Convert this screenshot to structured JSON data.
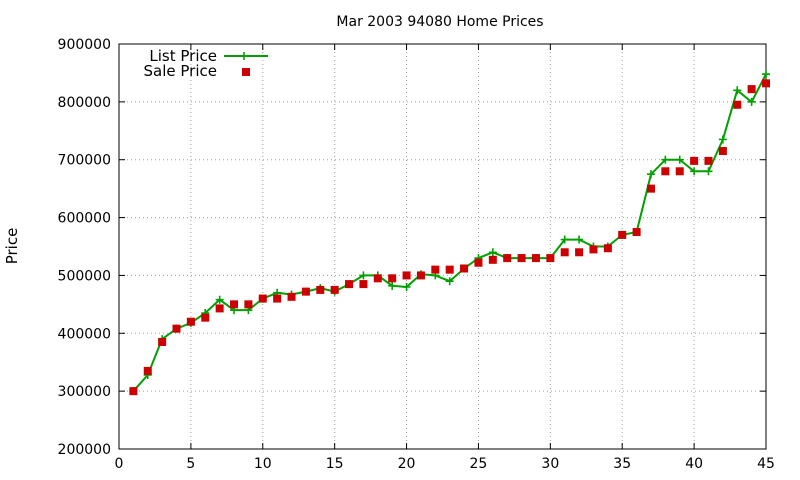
{
  "chart_data": {
    "type": "line",
    "title": "Mar 2003 94080 Home Prices",
    "xlabel": "",
    "ylabel": "Price",
    "xlim": [
      0,
      45
    ],
    "ylim": [
      200000,
      900000
    ],
    "x_ticks": [
      "0",
      "5",
      "10",
      "15",
      "20",
      "25",
      "30",
      "35",
      "40",
      "45"
    ],
    "y_ticks": [
      "200000",
      "300000",
      "400000",
      "500000",
      "600000",
      "700000",
      "800000",
      "900000"
    ],
    "grid": true,
    "legend_position": "top-left",
    "series": [
      {
        "name": "List Price",
        "style": "line-with-plus-markers",
        "color": "#00a000",
        "x": [
          1,
          2,
          3,
          4,
          5,
          6,
          7,
          8,
          9,
          10,
          11,
          12,
          13,
          14,
          15,
          16,
          17,
          18,
          19,
          20,
          21,
          22,
          23,
          24,
          25,
          26,
          27,
          28,
          29,
          30,
          31,
          32,
          33,
          34,
          35,
          36,
          37,
          38,
          39,
          40,
          41,
          42,
          43,
          44,
          45
        ],
        "values": [
          300000,
          328000,
          390000,
          408000,
          418000,
          435000,
          458000,
          440000,
          440000,
          460000,
          470000,
          467000,
          472000,
          478000,
          472000,
          485000,
          500000,
          500000,
          482000,
          480000,
          502000,
          500000,
          490000,
          512000,
          530000,
          540000,
          530000,
          530000,
          530000,
          530000,
          562000,
          562000,
          550000,
          550000,
          570000,
          575000,
          675000,
          700000,
          700000,
          680000,
          680000,
          735000,
          820000,
          800000,
          848000
        ]
      },
      {
        "name": "Sale Price",
        "style": "square-markers",
        "color": "#cc0000",
        "x": [
          1,
          2,
          3,
          4,
          5,
          6,
          7,
          8,
          9,
          10,
          11,
          12,
          13,
          14,
          15,
          16,
          17,
          18,
          19,
          20,
          21,
          22,
          23,
          24,
          25,
          26,
          27,
          28,
          29,
          30,
          31,
          32,
          33,
          34,
          35,
          36,
          37,
          38,
          39,
          40,
          41,
          42,
          43,
          44,
          45
        ],
        "values": [
          300000,
          335000,
          385000,
          408000,
          420000,
          427000,
          443000,
          450000,
          450000,
          460000,
          460000,
          463000,
          472000,
          475000,
          475000,
          485000,
          485000,
          495000,
          495000,
          500000,
          500000,
          510000,
          510000,
          512000,
          522000,
          527000,
          530000,
          530000,
          530000,
          530000,
          540000,
          540000,
          545000,
          547000,
          570000,
          575000,
          650000,
          680000,
          680000,
          698000,
          698000,
          715000,
          795000,
          822000,
          832000
        ]
      }
    ]
  }
}
